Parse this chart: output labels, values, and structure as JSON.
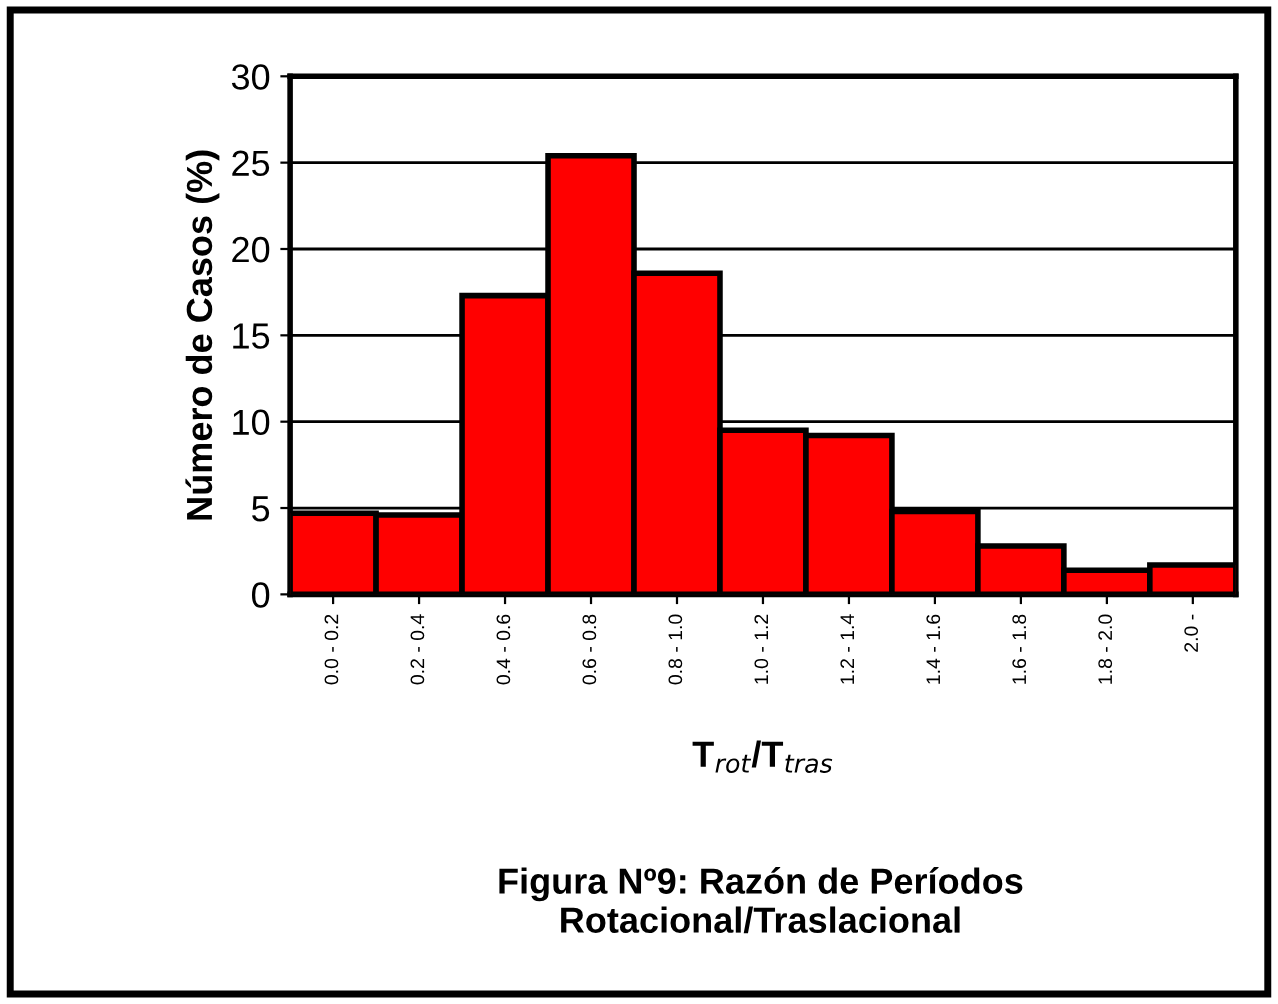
{
  "chart_data": {
    "type": "bar",
    "categories": [
      "0.0 - 0.2",
      "0.2 - 0.4",
      "0.4 - 0.6",
      "0.6 - 0.8",
      "0.8 - 1.0",
      "1.0 - 1.2",
      "1.2 - 1.4",
      "1.4 - 1.6",
      "1.6 - 1.8",
      "1.8 - 2.0",
      "2.0 -"
    ],
    "values": [
      4.7,
      4.6,
      17.3,
      25.4,
      18.6,
      9.5,
      9.2,
      4.8,
      2.8,
      1.4,
      1.7
    ],
    "color": "#ff0000",
    "xlabel": "T$_{rot}$/T$_{tras}$",
    "ylabel": "Número de Casos (%)",
    "ylim": [
      0,
      30
    ],
    "yticks": [
      0,
      5,
      10,
      15,
      20,
      25,
      30
    ],
    "grid": "y",
    "annotations": [
      "Figura Nº9: Razón de Períodos\nRotacional/Traslacional"
    ]
  }
}
